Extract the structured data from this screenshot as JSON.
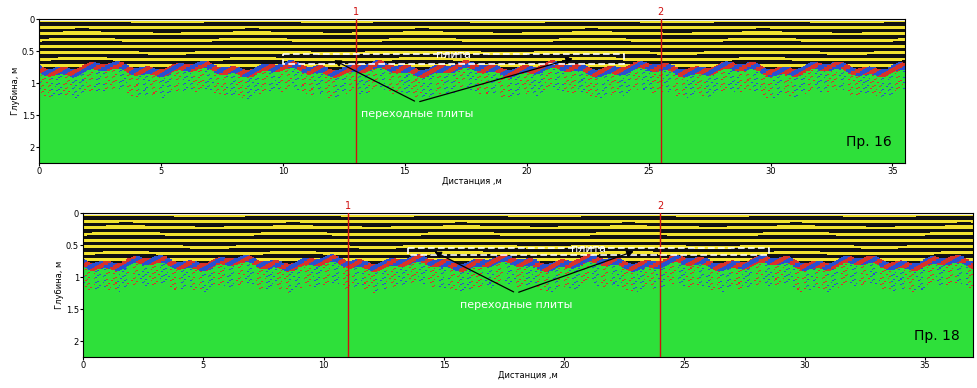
{
  "chart_data": [
    {
      "type": "radargram",
      "title": "Пр. 16",
      "xlabel": "Дистанция ,м",
      "ylabel": "Глубина, м",
      "xlim": [
        0,
        35.5
      ],
      "ylim": [
        2.25,
        0
      ],
      "xticks": [
        0,
        5,
        10,
        15,
        20,
        25,
        30,
        35
      ],
      "yticks": [
        0,
        0.5,
        1,
        1.5,
        2
      ],
      "markers": [
        {
          "x": 13,
          "label": "1"
        },
        {
          "x": 25.5,
          "label": "2"
        }
      ],
      "slab": {
        "label": "плита",
        "x": [
          10,
          24
        ],
        "depth": [
          0.55,
          0.7
        ]
      },
      "annotation": {
        "text": "переходные плиты",
        "x": 15.5,
        "y": 1.4,
        "arrows_to": [
          [
            12,
            0.62
          ],
          [
            22,
            0.6
          ]
        ]
      }
    },
    {
      "type": "radargram",
      "title": "Пр. 18",
      "xlabel": "Дистанция ,м",
      "ylabel": "Глубина, м",
      "xlim": [
        0,
        37
      ],
      "ylim": [
        2.25,
        0
      ],
      "xticks": [
        0,
        5,
        10,
        15,
        20,
        25,
        30,
        35
      ],
      "yticks": [
        0,
        0.5,
        1,
        1.5,
        2
      ],
      "markers": [
        {
          "x": 11,
          "label": "1"
        },
        {
          "x": 24,
          "label": "2"
        }
      ],
      "slab": {
        "label": "плита",
        "x": [
          13.5,
          28.5
        ],
        "depth": [
          0.55,
          0.65
        ]
      },
      "annotation": {
        "text": "переходные плиты",
        "x": 18,
        "y": 1.35,
        "arrows_to": [
          [
            14.5,
            0.58
          ],
          [
            23,
            0.58
          ]
        ]
      }
    }
  ]
}
